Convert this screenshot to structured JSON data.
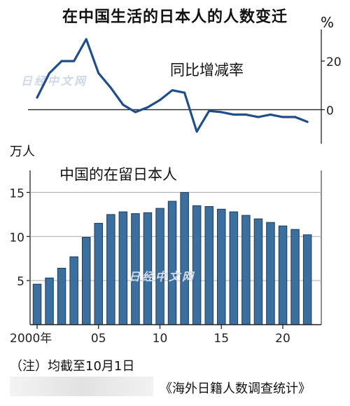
{
  "title": "在中国生活的日本人的人数变迁",
  "watermark": "日经中文网",
  "note": "（注）均截至10月1日",
  "source": "《海外日籍人数调查统计》",
  "chart_data": [
    {
      "type": "line",
      "label": "同比增减率",
      "unit": "%",
      "x": [
        2000,
        2001,
        2002,
        2003,
        2004,
        2005,
        2006,
        2007,
        2008,
        2009,
        2010,
        2011,
        2012,
        2013,
        2014,
        2015,
        2016,
        2017,
        2018,
        2019,
        2020,
        2021,
        2022
      ],
      "values": [
        5,
        15,
        20,
        20,
        29,
        15,
        9,
        2,
        -1,
        1,
        4,
        8,
        7,
        -9,
        -0.5,
        -1,
        -2,
        -2,
        -3,
        -2,
        -3,
        -3,
        -5
      ],
      "ylim": [
        -14,
        33
      ],
      "yticks": [
        {
          "value": 20,
          "label": "20"
        },
        {
          "value": 0,
          "label": "0"
        }
      ],
      "line_color": "#1f4e8c"
    },
    {
      "type": "bar",
      "label": "中国的在留日本人",
      "unit": "万人",
      "x": [
        2000,
        2001,
        2002,
        2003,
        2004,
        2005,
        2006,
        2007,
        2008,
        2009,
        2010,
        2011,
        2012,
        2013,
        2014,
        2015,
        2016,
        2017,
        2018,
        2019,
        2020,
        2021,
        2022
      ],
      "values": [
        4.6,
        5.3,
        6.4,
        7.7,
        9.9,
        11.5,
        12.5,
        12.8,
        12.6,
        12.7,
        13.2,
        14.0,
        15.0,
        13.5,
        13.4,
        13.1,
        12.8,
        12.4,
        12.0,
        11.6,
        11.2,
        10.8,
        10.2
      ],
      "ylim": [
        0,
        17.5
      ],
      "yticks": [
        {
          "value": 15,
          "label": "15"
        },
        {
          "value": 10,
          "label": "10"
        },
        {
          "value": 5,
          "label": "5"
        }
      ],
      "xticks": [
        {
          "value": 2000,
          "label": "2000年"
        },
        {
          "value": 2005,
          "label": "05"
        },
        {
          "value": 2010,
          "label": "10"
        },
        {
          "value": 2015,
          "label": "15"
        },
        {
          "value": 2020,
          "label": "20"
        }
      ],
      "bar_color": "#3a6f9e",
      "grid": true
    }
  ]
}
